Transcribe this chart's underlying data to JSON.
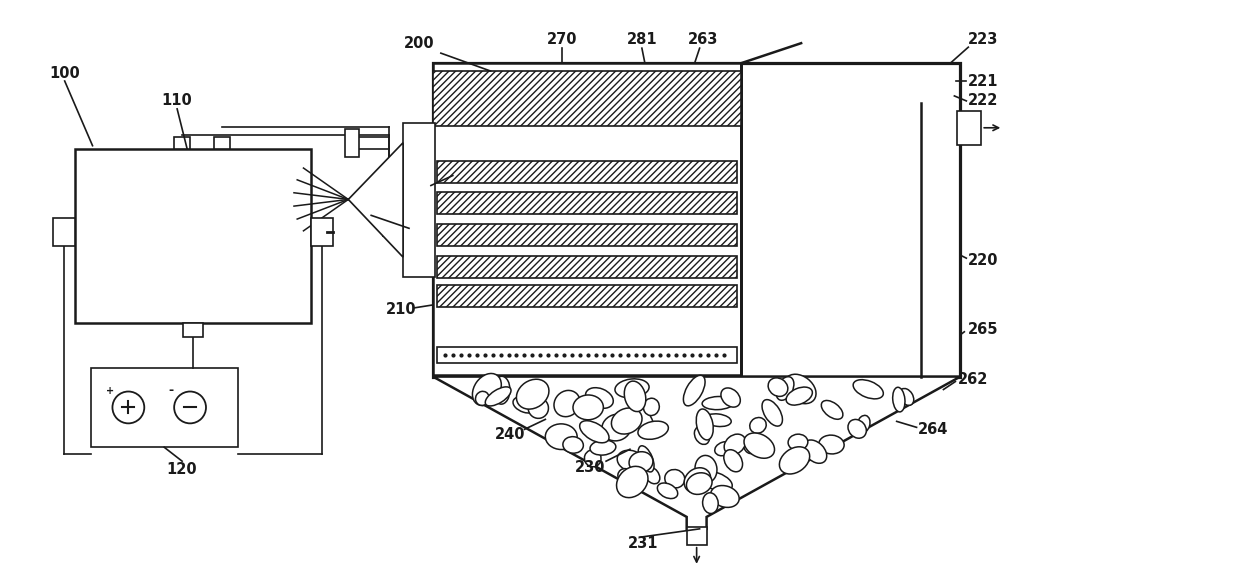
{
  "bg_color": "#ffffff",
  "line_color": "#1a1a1a",
  "lw_main": 1.8,
  "lw_thin": 1.2,
  "label_fontsize": 10.5,
  "fig_width": 12.4,
  "fig_height": 5.8
}
